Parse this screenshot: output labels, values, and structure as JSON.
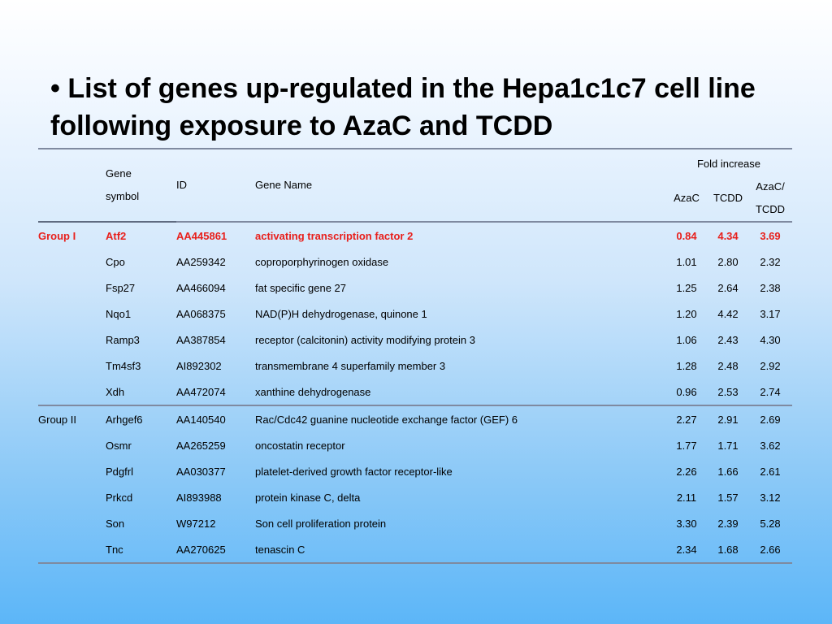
{
  "slide": {
    "bullet": "•",
    "title": "List of genes up-regulated in the Hepa1c1c7 cell line following exposure to AzaC and TCDD"
  },
  "table": {
    "headers": {
      "gene_symbol_line1": "Gene",
      "gene_symbol_line2": "symbol",
      "id": "ID",
      "gene_name": "Gene Name",
      "fold_increase": "Fold increase",
      "azac": "AzaC",
      "tcdd": "TCDD",
      "ratio_line1": "AzaC/",
      "ratio_line2": "TCDD"
    },
    "groups": [
      {
        "label": "Group I",
        "rows": [
          {
            "symbol": "Atf2",
            "id": "AA445861",
            "name": "activating transcription factor 2",
            "azac": "0.84",
            "tcdd": "4.34",
            "ratio": "3.69",
            "highlight": true
          },
          {
            "symbol": "Cpo",
            "id": "AA259342",
            "name": "coproporphyrinogen oxidase",
            "azac": "1.01",
            "tcdd": "2.80",
            "ratio": "2.32"
          },
          {
            "symbol": "Fsp27",
            "id": "AA466094",
            "name": "fat specific gene 27",
            "azac": "1.25",
            "tcdd": "2.64",
            "ratio": "2.38"
          },
          {
            "symbol": "Nqo1",
            "id": "AA068375",
            "name": "NAD(P)H dehydrogenase, quinone 1",
            "azac": "1.20",
            "tcdd": "4.42",
            "ratio": "3.17"
          },
          {
            "symbol": "Ramp3",
            "id": "AA387854",
            "name": "receptor (calcitonin) activity modifying protein 3",
            "azac": "1.06",
            "tcdd": "2.43",
            "ratio": "4.30"
          },
          {
            "symbol": "Tm4sf3",
            "id": "AI892302",
            "name": "transmembrane 4 superfamily member 3",
            "azac": "1.28",
            "tcdd": "2.48",
            "ratio": "2.92"
          },
          {
            "symbol": "Xdh",
            "id": "AA472074",
            "name": "xanthine dehydrogenase",
            "azac": "0.96",
            "tcdd": "2.53",
            "ratio": "2.74"
          }
        ]
      },
      {
        "label": "Group II",
        "rows": [
          {
            "symbol": "Arhgef6",
            "id": "AA140540",
            "name": "Rac/Cdc42 guanine nucleotide exchange factor (GEF) 6",
            "azac": "2.27",
            "tcdd": "2.91",
            "ratio": "2.69"
          },
          {
            "symbol": "Osmr",
            "id": "AA265259",
            "name": "oncostatin receptor",
            "azac": "1.77",
            "tcdd": "1.71",
            "ratio": "3.62"
          },
          {
            "symbol": "Pdgfrl",
            "id": "AA030377",
            "name": "platelet-derived growth factor receptor-like",
            "azac": "2.26",
            "tcdd": "1.66",
            "ratio": "2.61"
          },
          {
            "symbol": "Prkcd",
            "id": "AI893988",
            "name": "protein kinase C, delta",
            "azac": "2.11",
            "tcdd": "1.57",
            "ratio": "3.12"
          },
          {
            "symbol": "Son",
            "id": "W97212",
            "name": "Son cell proliferation protein",
            "azac": "3.30",
            "tcdd": "2.39",
            "ratio": "5.28"
          },
          {
            "symbol": "Tnc",
            "id": "AA270625",
            "name": "tenascin C",
            "azac": "2.34",
            "tcdd": "1.68",
            "ratio": "2.66"
          }
        ]
      }
    ],
    "colors": {
      "highlight_text": "#e8201c",
      "rule": "#7f8aa0"
    }
  }
}
